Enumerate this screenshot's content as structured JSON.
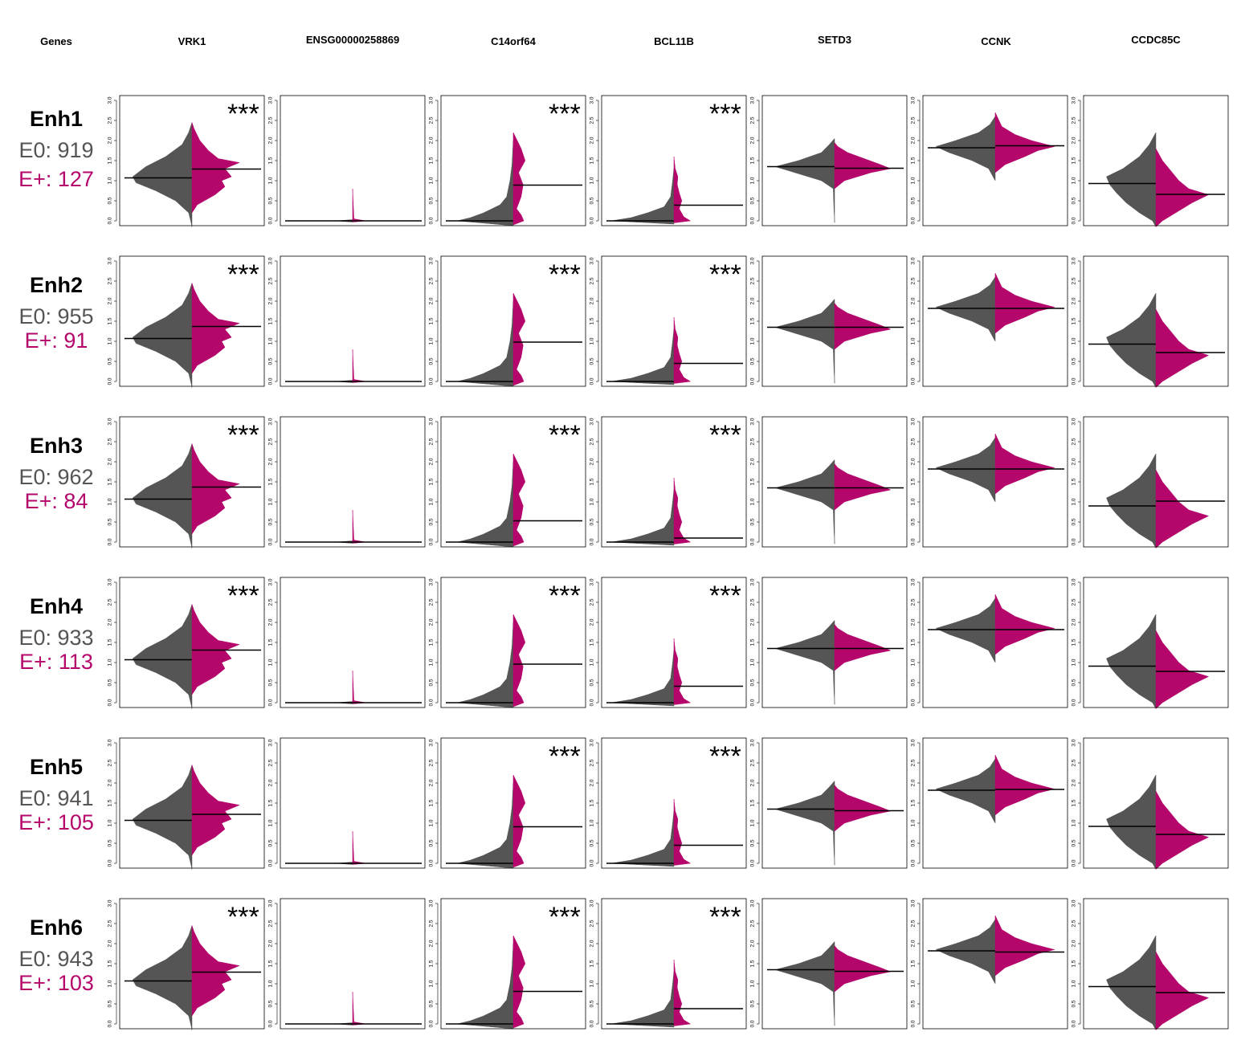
{
  "colors": {
    "e0": "#555555",
    "eplus": "#b5076b",
    "line": "#000000"
  },
  "header": {
    "first": "Genes",
    "genes": [
      "VRK1",
      "ENSG00000258869",
      "C14orf64",
      "BCL11B",
      "SETD3",
      "CCNK",
      "CCDC85C"
    ]
  },
  "chart_data": {
    "type": "violin",
    "ylim": [
      0,
      3
    ],
    "yticks": [
      "0.0",
      "0.5",
      "1.0",
      "1.5",
      "2.0",
      "2.5",
      "3.0"
    ],
    "significance_label": "***",
    "rows": [
      {
        "name": "Enh1",
        "e0_label": "E0: 919",
        "eplus_label": "E+: 127",
        "medians_e0": [
          1.07,
          0.0,
          0.0,
          0.0,
          1.35,
          1.82,
          0.93
        ],
        "medians_eplus": [
          1.29,
          0.0,
          0.89,
          0.39,
          1.31,
          1.87,
          0.66
        ],
        "significant": [
          true,
          false,
          true,
          true,
          false,
          false,
          false
        ]
      },
      {
        "name": "Enh2",
        "e0_label": "E0: 955",
        "eplus_label": "E+: 91",
        "medians_e0": [
          1.07,
          0.0,
          0.0,
          0.0,
          1.35,
          1.82,
          0.93
        ],
        "medians_eplus": [
          1.37,
          0.0,
          0.98,
          0.45,
          1.35,
          1.82,
          0.72
        ],
        "significant": [
          true,
          false,
          true,
          true,
          false,
          false,
          false
        ]
      },
      {
        "name": "Enh3",
        "e0_label": "E0: 962",
        "eplus_label": "E+: 84",
        "medians_e0": [
          1.07,
          0.0,
          0.0,
          0.0,
          1.35,
          1.82,
          0.9
        ],
        "medians_eplus": [
          1.37,
          0.0,
          0.53,
          0.1,
          1.35,
          1.82,
          1.02
        ],
        "significant": [
          true,
          false,
          true,
          true,
          false,
          false,
          false
        ]
      },
      {
        "name": "Enh4",
        "e0_label": "E0: 933",
        "eplus_label": "E+: 113",
        "medians_e0": [
          1.07,
          0.0,
          0.0,
          0.0,
          1.35,
          1.82,
          0.91
        ],
        "medians_eplus": [
          1.31,
          0.0,
          0.96,
          0.41,
          1.35,
          1.82,
          0.78
        ],
        "significant": [
          true,
          false,
          true,
          true,
          false,
          false,
          false
        ]
      },
      {
        "name": "Enh5",
        "e0_label": "E0: 941",
        "eplus_label": "E+: 105",
        "medians_e0": [
          1.07,
          0.0,
          0.0,
          0.0,
          1.35,
          1.82,
          0.92
        ],
        "medians_eplus": [
          1.22,
          0.0,
          0.91,
          0.45,
          1.31,
          1.84,
          0.72
        ],
        "significant": [
          false,
          false,
          true,
          true,
          false,
          false,
          false
        ]
      },
      {
        "name": "Enh6",
        "e0_label": "E0: 943",
        "eplus_label": "E+: 103",
        "medians_e0": [
          1.07,
          0.0,
          0.0,
          0.0,
          1.35,
          1.82,
          0.93
        ],
        "medians_eplus": [
          1.29,
          0.0,
          0.81,
          0.38,
          1.31,
          1.79,
          0.78
        ],
        "significant": [
          true,
          false,
          true,
          true,
          false,
          false,
          false
        ]
      }
    ]
  }
}
